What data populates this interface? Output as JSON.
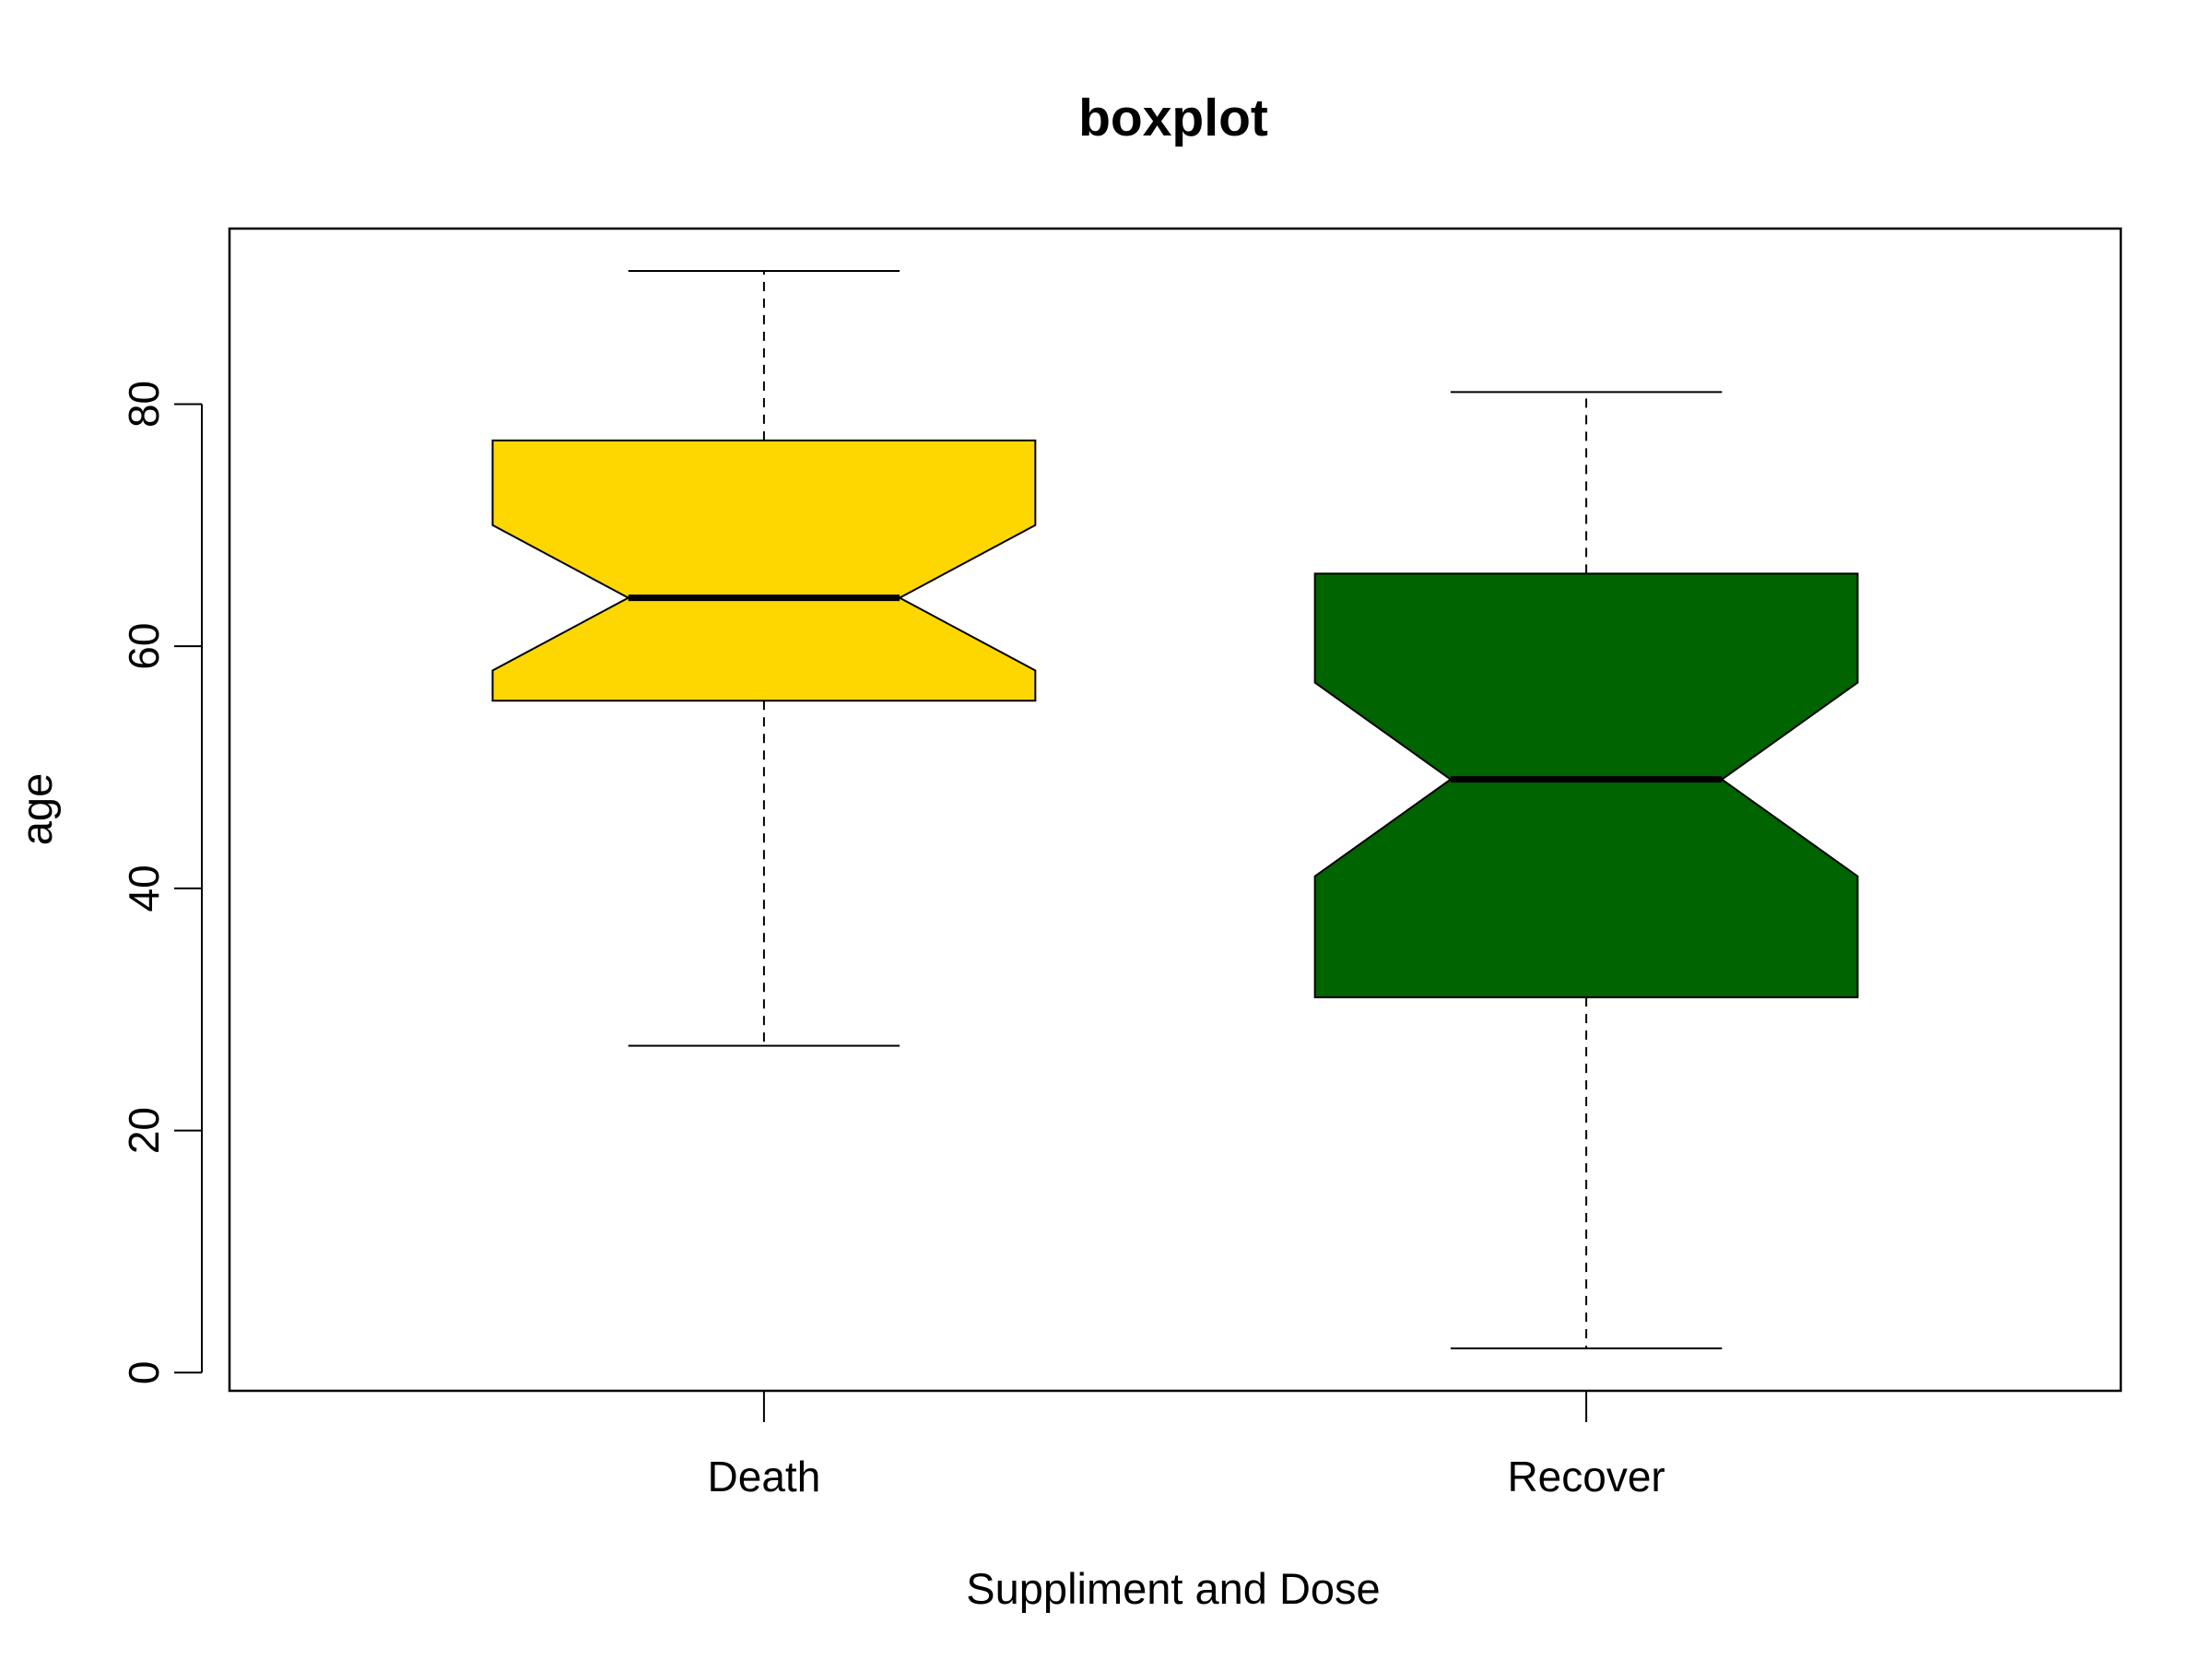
{
  "chart_data": {
    "type": "boxplot",
    "title": "boxplot",
    "xlabel": "Suppliment and Dose",
    "ylabel": "age",
    "ylim": [
      -1.5,
      94.5
    ],
    "yticks": [
      0,
      20,
      40,
      60,
      80
    ],
    "notched": true,
    "grid": false,
    "categories": [
      "Death",
      "Recover"
    ],
    "boxes": [
      {
        "category": "Death",
        "whisker_low": 27,
        "q1": 55.5,
        "median": 64,
        "q3": 77,
        "whisker_high": 91,
        "notch_low": 58,
        "notch_high": 70,
        "color": "#FFD700"
      },
      {
        "category": "Recover",
        "whisker_low": 2,
        "q1": 31,
        "median": 49,
        "q3": 66,
        "whisker_high": 81,
        "notch_low": 41,
        "notch_high": 57,
        "color": "#006400"
      }
    ]
  }
}
